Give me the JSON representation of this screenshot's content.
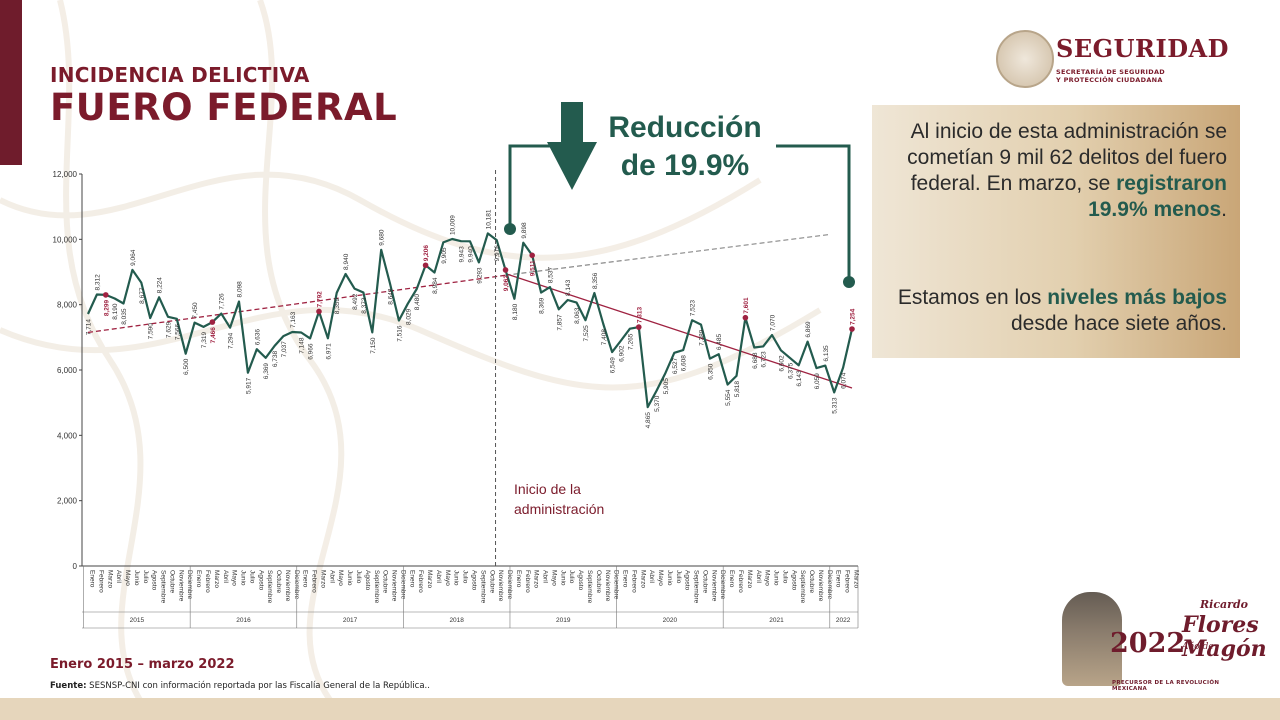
{
  "header": {
    "title_line1": "INCIDENCIA DELICTIVA",
    "title_line2": "FUERO FEDERAL"
  },
  "logo": {
    "brand": "SEGURIDAD",
    "sub1": "SECRETARÍA DE SEGURIDAD",
    "sub2": "Y PROTECCIÓN CIUDADANA"
  },
  "info_box": {
    "p1_a": "Al inicio de esta administración se cometían 9 mil 62 delitos del fuero federal. En marzo, se ",
    "p1_hl": "registraron 19.9% menos",
    "p1_end": ".",
    "p2_a": "Estamos en los ",
    "p2_hl": "niveles más bajos",
    "p2_b": " desde hace siete años."
  },
  "callout": {
    "line1": "Reducción",
    "line2": "de 19.9%"
  },
  "footer": {
    "period": "Enero 2015 – marzo 2022",
    "source_label": "Fuente:",
    "source_text": " SESNSP-CNI con información reportada por las Fiscalía General de la República.."
  },
  "badge": {
    "year": "2022",
    "ano_de": "Año de",
    "name1": "Ricardo",
    "name2": "Flores",
    "name3": "Magón",
    "tagline": "PRECURSOR DE LA REVOLUCIÓN MEXICANA"
  },
  "colors": {
    "green": "#235b4e",
    "wine": "#7b1b2b",
    "highlight_red": "#9f2241",
    "gray_dashed": "#8a8a8a"
  },
  "chart_data": {
    "type": "line",
    "ylim": [
      0,
      12000
    ],
    "yticks": [
      0,
      2000,
      4000,
      6000,
      8000,
      10000,
      12000
    ],
    "ytick_labels": [
      "0",
      "2,000",
      "4,000",
      "6,000",
      "8,000",
      "10,000",
      "12,000"
    ],
    "months": [
      "Enero",
      "Febrero",
      "Marzo",
      "Abril",
      "Mayo",
      "Junio",
      "Julio",
      "Agosto",
      "Septiembre",
      "Octubre",
      "Noviembre",
      "Diciembre"
    ],
    "years": [
      "2015",
      "2016",
      "2017",
      "2018",
      "2019",
      "2020",
      "2021",
      "2022"
    ],
    "series": [
      {
        "values": [
          7714,
          8312,
          8299,
          8190,
          8035,
          9064,
          8677,
          7590,
          8224,
          7629,
          7566,
          6500,
          7450,
          7319,
          7466,
          7726,
          7294,
          8098,
          5917,
          6636,
          6369,
          6738,
          7037,
          7163,
          7148,
          6966,
          7792,
          6971,
          8359,
          8940,
          8492,
          8373,
          7150,
          9680,
          8648,
          7516,
          8029,
          8480,
          9206,
          8984,
          9905,
          10009,
          9943,
          9940,
          9293,
          10181,
          9976,
          9062,
          8180,
          9898,
          9511,
          8369,
          8537,
          7857,
          8143,
          8063,
          7525,
          8356,
          7408,
          6549,
          6902,
          7265,
          7313,
          4865,
          5370,
          5905,
          6527,
          6608,
          7523,
          7389,
          6350,
          6485,
          5554,
          5818,
          7601,
          6688,
          6723,
          7070,
          6602,
          6375,
          6143,
          6869,
          6059,
          6135,
          5313,
          6074,
          7254
        ],
        "labels": [
          "7,714",
          "8,312",
          "8,299",
          "8,190",
          "8,035",
          "9,064",
          "8,677",
          "7,590",
          "8,224",
          "7,629",
          "7,566",
          "6,500",
          "7,450",
          "7,319",
          "7,466",
          "7,726",
          "7,294",
          "8,098",
          "5,917",
          "6,636",
          "6,369",
          "6,738",
          "7,037",
          "7,163",
          "7,148",
          "6,966",
          "7,792",
          "6,971",
          "8,359",
          "8,940",
          "8,492",
          "8,373",
          "7,150",
          "9,680",
          "8,648",
          "7,516",
          "8,029",
          "8,480",
          "9,206",
          "8,984",
          "9,905",
          "10,009",
          "9,943",
          "9,940",
          "9,293",
          "10,181",
          "9,976",
          "9,062",
          "8,180",
          "9,898",
          "9,511",
          "8,369",
          "8,537",
          "7,857",
          "8,143",
          "8,063",
          "7,525",
          "8,356",
          "7,408",
          "6,549",
          "6,902",
          "7,265",
          "7,313",
          "4,865",
          "5,370",
          "5,905",
          "6,527",
          "6,608",
          "7,523",
          "7,389",
          "6,350",
          "6,485",
          "5,554",
          "5,818",
          "7,601",
          "6,688",
          "6,723",
          "7,070",
          "6,602",
          "6,375",
          "6,143",
          "6,869",
          "6,059",
          "6,135",
          "5,313",
          "6,074",
          "7,254"
        ]
      }
    ],
    "highlighted_indices": [
      2,
      14,
      26,
      38,
      47,
      50,
      62,
      74,
      86
    ],
    "trend_before": {
      "start_value": 7150,
      "end_value": 8900
    },
    "trend_projection": {
      "end_value": 10150
    },
    "trend_after": {
      "start_value": 8950,
      "end_value": 5450
    },
    "annotation_admin_start": "Inicio de la administración",
    "annotation_admin_index": 47
  }
}
